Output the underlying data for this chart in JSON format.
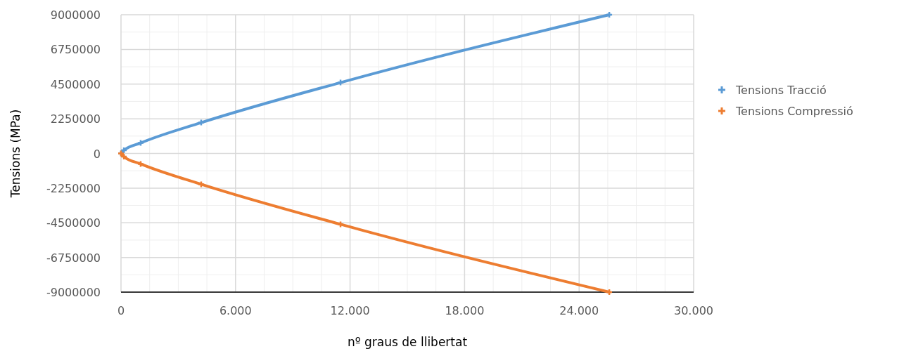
{
  "chart_data": {
    "type": "line",
    "xlabel": "nº graus de llibertat",
    "ylabel": "Tensions (MPa)",
    "xlim": [
      0,
      30000
    ],
    "xticks": [
      0,
      {
        "value": 6000,
        "label": "6.000"
      },
      {
        "value": 12000,
        "label": "12.000"
      },
      {
        "value": 18000,
        "label": "18.000"
      },
      {
        "value": 24000,
        "label": "24.000"
      },
      {
        "value": 30000,
        "label": "30.000"
      }
    ],
    "ylim": [
      -9000000,
      9000000
    ],
    "yticks": [
      -9000000,
      -6750000,
      -4500000,
      -2250000,
      0,
      2250000,
      4500000,
      6750000,
      9000000
    ],
    "grid": true,
    "legend": "right",
    "marker": "cross",
    "line_style": "solid",
    "x": [
      0,
      150,
      1030,
      4200,
      11500,
      25580
    ],
    "series": [
      {
        "name": "Tensions Tracció",
        "color": "#5b9bd5",
        "values": [
          0,
          200000,
          680000,
          2000000,
          4600000,
          9000000
        ]
      },
      {
        "name": "Tensions Compressió",
        "color": "#ed7d31",
        "values": [
          0,
          -200000,
          -680000,
          -2000000,
          -4600000,
          -9000000
        ]
      }
    ]
  }
}
